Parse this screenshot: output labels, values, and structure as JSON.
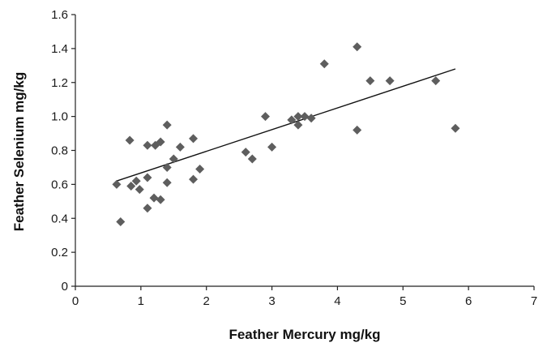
{
  "chart_data": {
    "type": "scatter",
    "title": "",
    "xlabel": "Feather Mercury mg/kg",
    "ylabel": "Feather Selenium mg/kg",
    "xlim": [
      0,
      7
    ],
    "ylim": [
      0,
      1.6
    ],
    "xticks": [
      "0",
      "1",
      "2",
      "3",
      "4",
      "5",
      "6",
      "7"
    ],
    "yticks": [
      "0",
      "0.2",
      "0.4",
      "0.6",
      "0.8",
      "1.0",
      "1.2",
      "1.4",
      "1.6"
    ],
    "grid": false,
    "legend": "none",
    "marker": "diamond",
    "point_color": "#5e5e5e",
    "points": [
      {
        "x": 0.63,
        "y": 0.6
      },
      {
        "x": 0.69,
        "y": 0.38
      },
      {
        "x": 0.83,
        "y": 0.86
      },
      {
        "x": 0.85,
        "y": 0.59
      },
      {
        "x": 0.93,
        "y": 0.62
      },
      {
        "x": 0.98,
        "y": 0.57
      },
      {
        "x": 1.1,
        "y": 0.83
      },
      {
        "x": 1.1,
        "y": 0.64
      },
      {
        "x": 1.1,
        "y": 0.46
      },
      {
        "x": 1.2,
        "y": 0.52
      },
      {
        "x": 1.22,
        "y": 0.83
      },
      {
        "x": 1.3,
        "y": 0.85
      },
      {
        "x": 1.3,
        "y": 0.51
      },
      {
        "x": 1.4,
        "y": 0.95
      },
      {
        "x": 1.4,
        "y": 0.7
      },
      {
        "x": 1.4,
        "y": 0.61
      },
      {
        "x": 1.5,
        "y": 0.75
      },
      {
        "x": 1.6,
        "y": 0.82
      },
      {
        "x": 1.8,
        "y": 0.87
      },
      {
        "x": 1.8,
        "y": 0.63
      },
      {
        "x": 1.9,
        "y": 0.69
      },
      {
        "x": 2.6,
        "y": 0.79
      },
      {
        "x": 2.7,
        "y": 0.75
      },
      {
        "x": 2.9,
        "y": 1.0
      },
      {
        "x": 3.0,
        "y": 0.82
      },
      {
        "x": 3.3,
        "y": 0.98
      },
      {
        "x": 3.4,
        "y": 1.0
      },
      {
        "x": 3.4,
        "y": 0.95
      },
      {
        "x": 3.5,
        "y": 1.0
      },
      {
        "x": 3.6,
        "y": 0.99
      },
      {
        "x": 3.8,
        "y": 1.31
      },
      {
        "x": 4.3,
        "y": 1.41
      },
      {
        "x": 4.3,
        "y": 0.92
      },
      {
        "x": 4.5,
        "y": 1.21
      },
      {
        "x": 4.8,
        "y": 1.21
      },
      {
        "x": 5.5,
        "y": 1.21
      },
      {
        "x": 5.8,
        "y": 0.93
      }
    ],
    "trendline": {
      "x": [
        0.63,
        5.8
      ],
      "y": [
        0.62,
        1.28
      ]
    }
  }
}
